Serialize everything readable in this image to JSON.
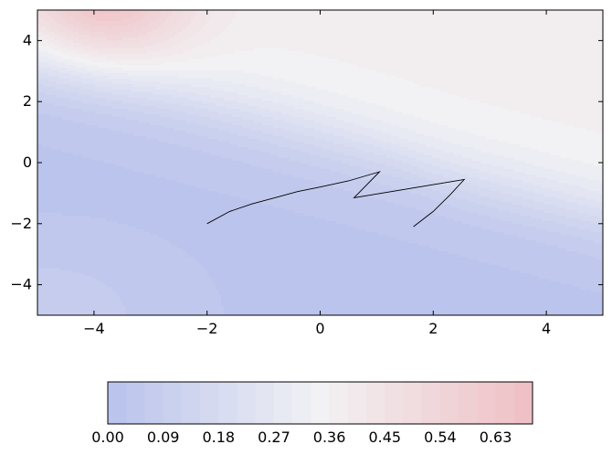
{
  "chart_data": {
    "type": "contour",
    "title": "",
    "xlabel": "",
    "ylabel": "",
    "xlim": [
      -5,
      5
    ],
    "ylim": [
      -5,
      5
    ],
    "x_ticks": [
      -4,
      -2,
      0,
      2,
      4
    ],
    "y_ticks": [
      -4,
      -2,
      0,
      2,
      4
    ],
    "x_tick_labels": [
      "−4",
      "−2",
      "0",
      "2",
      "4"
    ],
    "y_tick_labels": [
      "−4",
      "−2",
      "0",
      "2",
      "4"
    ],
    "grid": false,
    "colormap": "coolwarm",
    "colors": {
      "low": "#b9c2ec",
      "mid": "#f2f2f4",
      "high": "#efbfc4",
      "path": "#000000"
    },
    "trajectory": {
      "x": [
        -2.0,
        -1.6,
        -1.2,
        -0.8,
        -0.4,
        0.0,
        0.5,
        1.05,
        0.6,
        2.55,
        2.3,
        2.0,
        1.65
      ],
      "y": [
        -2.0,
        -1.6,
        -1.35,
        -1.15,
        -0.95,
        -0.8,
        -0.6,
        -0.3,
        -1.15,
        -0.55,
        -1.05,
        -1.6,
        -2.1
      ]
    },
    "colorbar": {
      "orientation": "horizontal",
      "min": 0.0,
      "max": 0.69,
      "levels": 23,
      "ticks": [
        0.0,
        0.09,
        0.18,
        0.27,
        0.36,
        0.45,
        0.54,
        0.63
      ],
      "tick_labels": [
        "0.00",
        "0.09",
        "0.18",
        "0.27",
        "0.36",
        "0.45",
        "0.54",
        "0.63"
      ]
    }
  }
}
